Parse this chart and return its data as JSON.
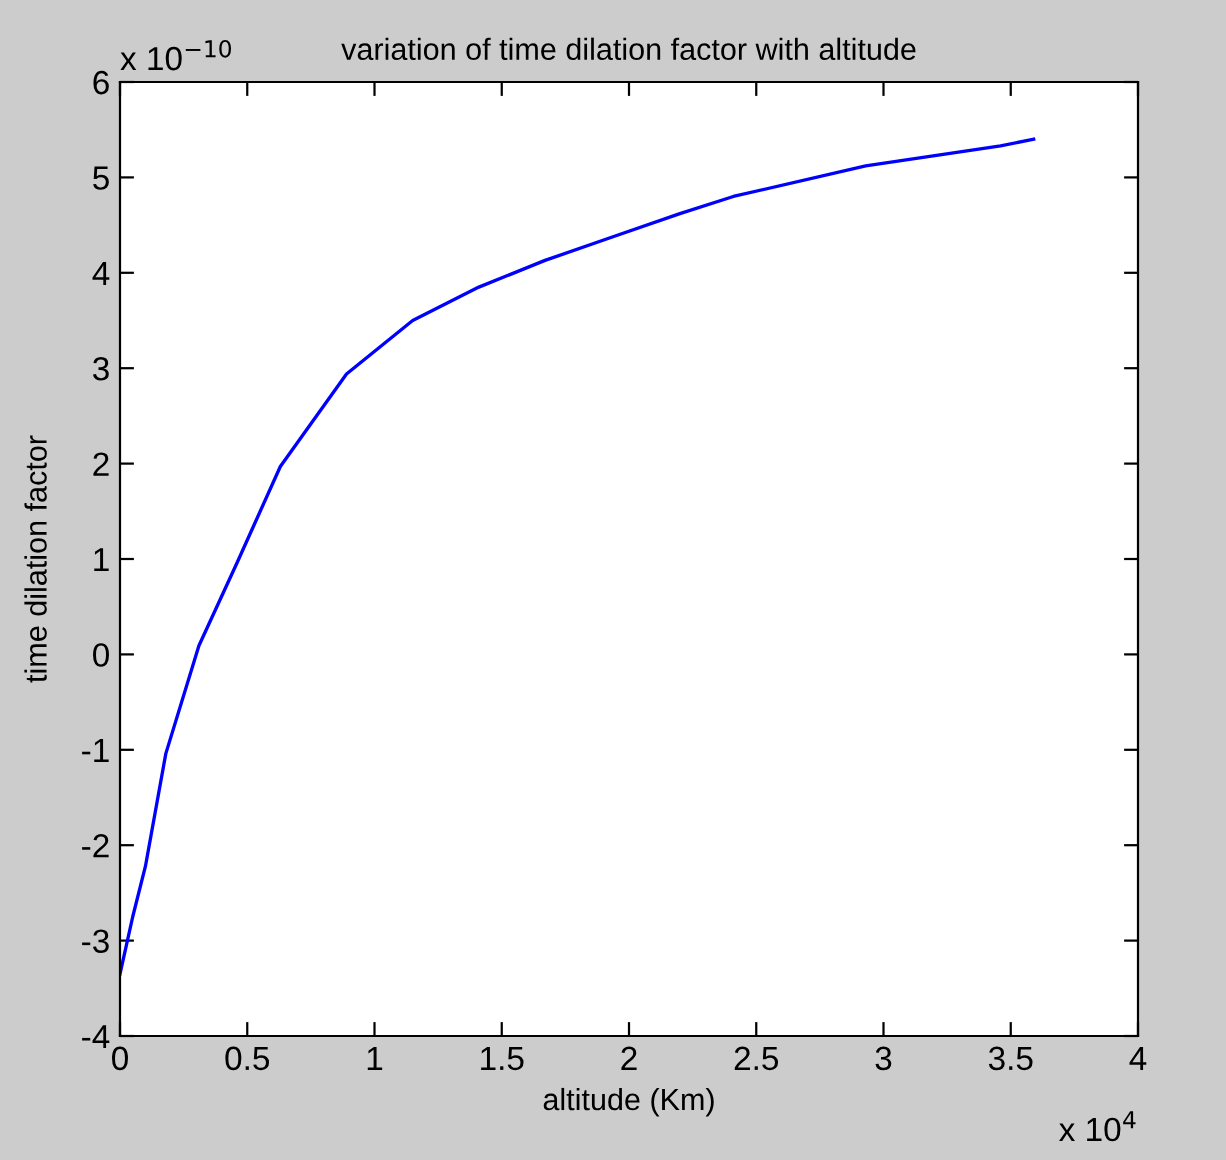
{
  "chart_data": {
    "type": "line",
    "title": "variation of time dilation factor with altitude",
    "xlabel": "altitude (Km)",
    "ylabel": "time dilation factor",
    "annotations": [
      "x 10$^{4}$",
      "x 10$^{−10}$"
    ],
    "series": [
      {
        "color": "#0000ff",
        "x": [
          0,
          0.05,
          0.1,
          0.18,
          0.31,
          0.46,
          0.63,
          0.89,
          1.15,
          1.41,
          1.67,
          1.94,
          2.2,
          2.41,
          2.93,
          3.46,
          3.59
        ],
        "values": [
          -3.35,
          -2.75,
          -2.22,
          -1.04,
          0.09,
          0.96,
          1.97,
          2.94,
          3.5,
          3.85,
          4.13,
          4.38,
          4.62,
          4.8,
          5.12,
          5.33,
          5.4
        ]
      }
    ],
    "xlim": [
      0,
      4
    ],
    "ylim": [
      -4,
      6
    ],
    "xticks": [
      0,
      0.5,
      1,
      1.5,
      2,
      2.5,
      3,
      3.5,
      4
    ],
    "yticks": [
      -4,
      -3,
      -2,
      -1,
      0,
      1,
      2,
      3,
      4,
      5,
      6
    ],
    "grid": false,
    "legend": false,
    "line_style": "solid",
    "marker": "none"
  }
}
